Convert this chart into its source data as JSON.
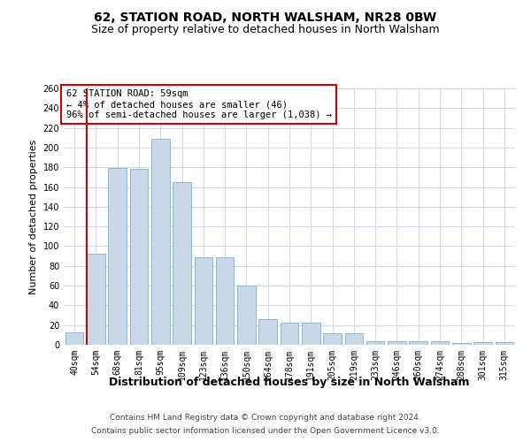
{
  "title": "62, STATION ROAD, NORTH WALSHAM, NR28 0BW",
  "subtitle": "Size of property relative to detached houses in North Walsham",
  "xlabel": "Distribution of detached houses by size in North Walsham",
  "ylabel": "Number of detached properties",
  "categories": [
    "40sqm",
    "54sqm",
    "68sqm",
    "81sqm",
    "95sqm",
    "109sqm",
    "123sqm",
    "136sqm",
    "150sqm",
    "164sqm",
    "178sqm",
    "191sqm",
    "205sqm",
    "219sqm",
    "233sqm",
    "246sqm",
    "260sqm",
    "274sqm",
    "288sqm",
    "301sqm",
    "315sqm"
  ],
  "values": [
    13,
    92,
    179,
    178,
    209,
    165,
    89,
    89,
    60,
    26,
    22,
    22,
    12,
    12,
    4,
    4,
    4,
    4,
    2,
    3,
    3
  ],
  "bar_color": "#c8d8e8",
  "bar_edge_color": "#7bafd4",
  "grid_color": "#d0d8e8",
  "annotation_box_text": [
    "62 STATION ROAD: 59sqm",
    "← 4% of detached houses are smaller (46)",
    "96% of semi-detached houses are larger (1,038) →"
  ],
  "red_line_color": "#cc0000",
  "ylim": [
    0,
    260
  ],
  "yticks": [
    0,
    20,
    40,
    60,
    80,
    100,
    120,
    140,
    160,
    180,
    200,
    220,
    240,
    260
  ],
  "footer_line1": "Contains HM Land Registry data © Crown copyright and database right 2024.",
  "footer_line2": "Contains public sector information licensed under the Open Government Licence v3.0.",
  "background_color": "#ffffff",
  "title_fontsize": 10,
  "subtitle_fontsize": 9,
  "xlabel_fontsize": 9,
  "ylabel_fontsize": 8,
  "tick_fontsize": 7,
  "annotation_fontsize": 7.5,
  "footer_fontsize": 6.5
}
